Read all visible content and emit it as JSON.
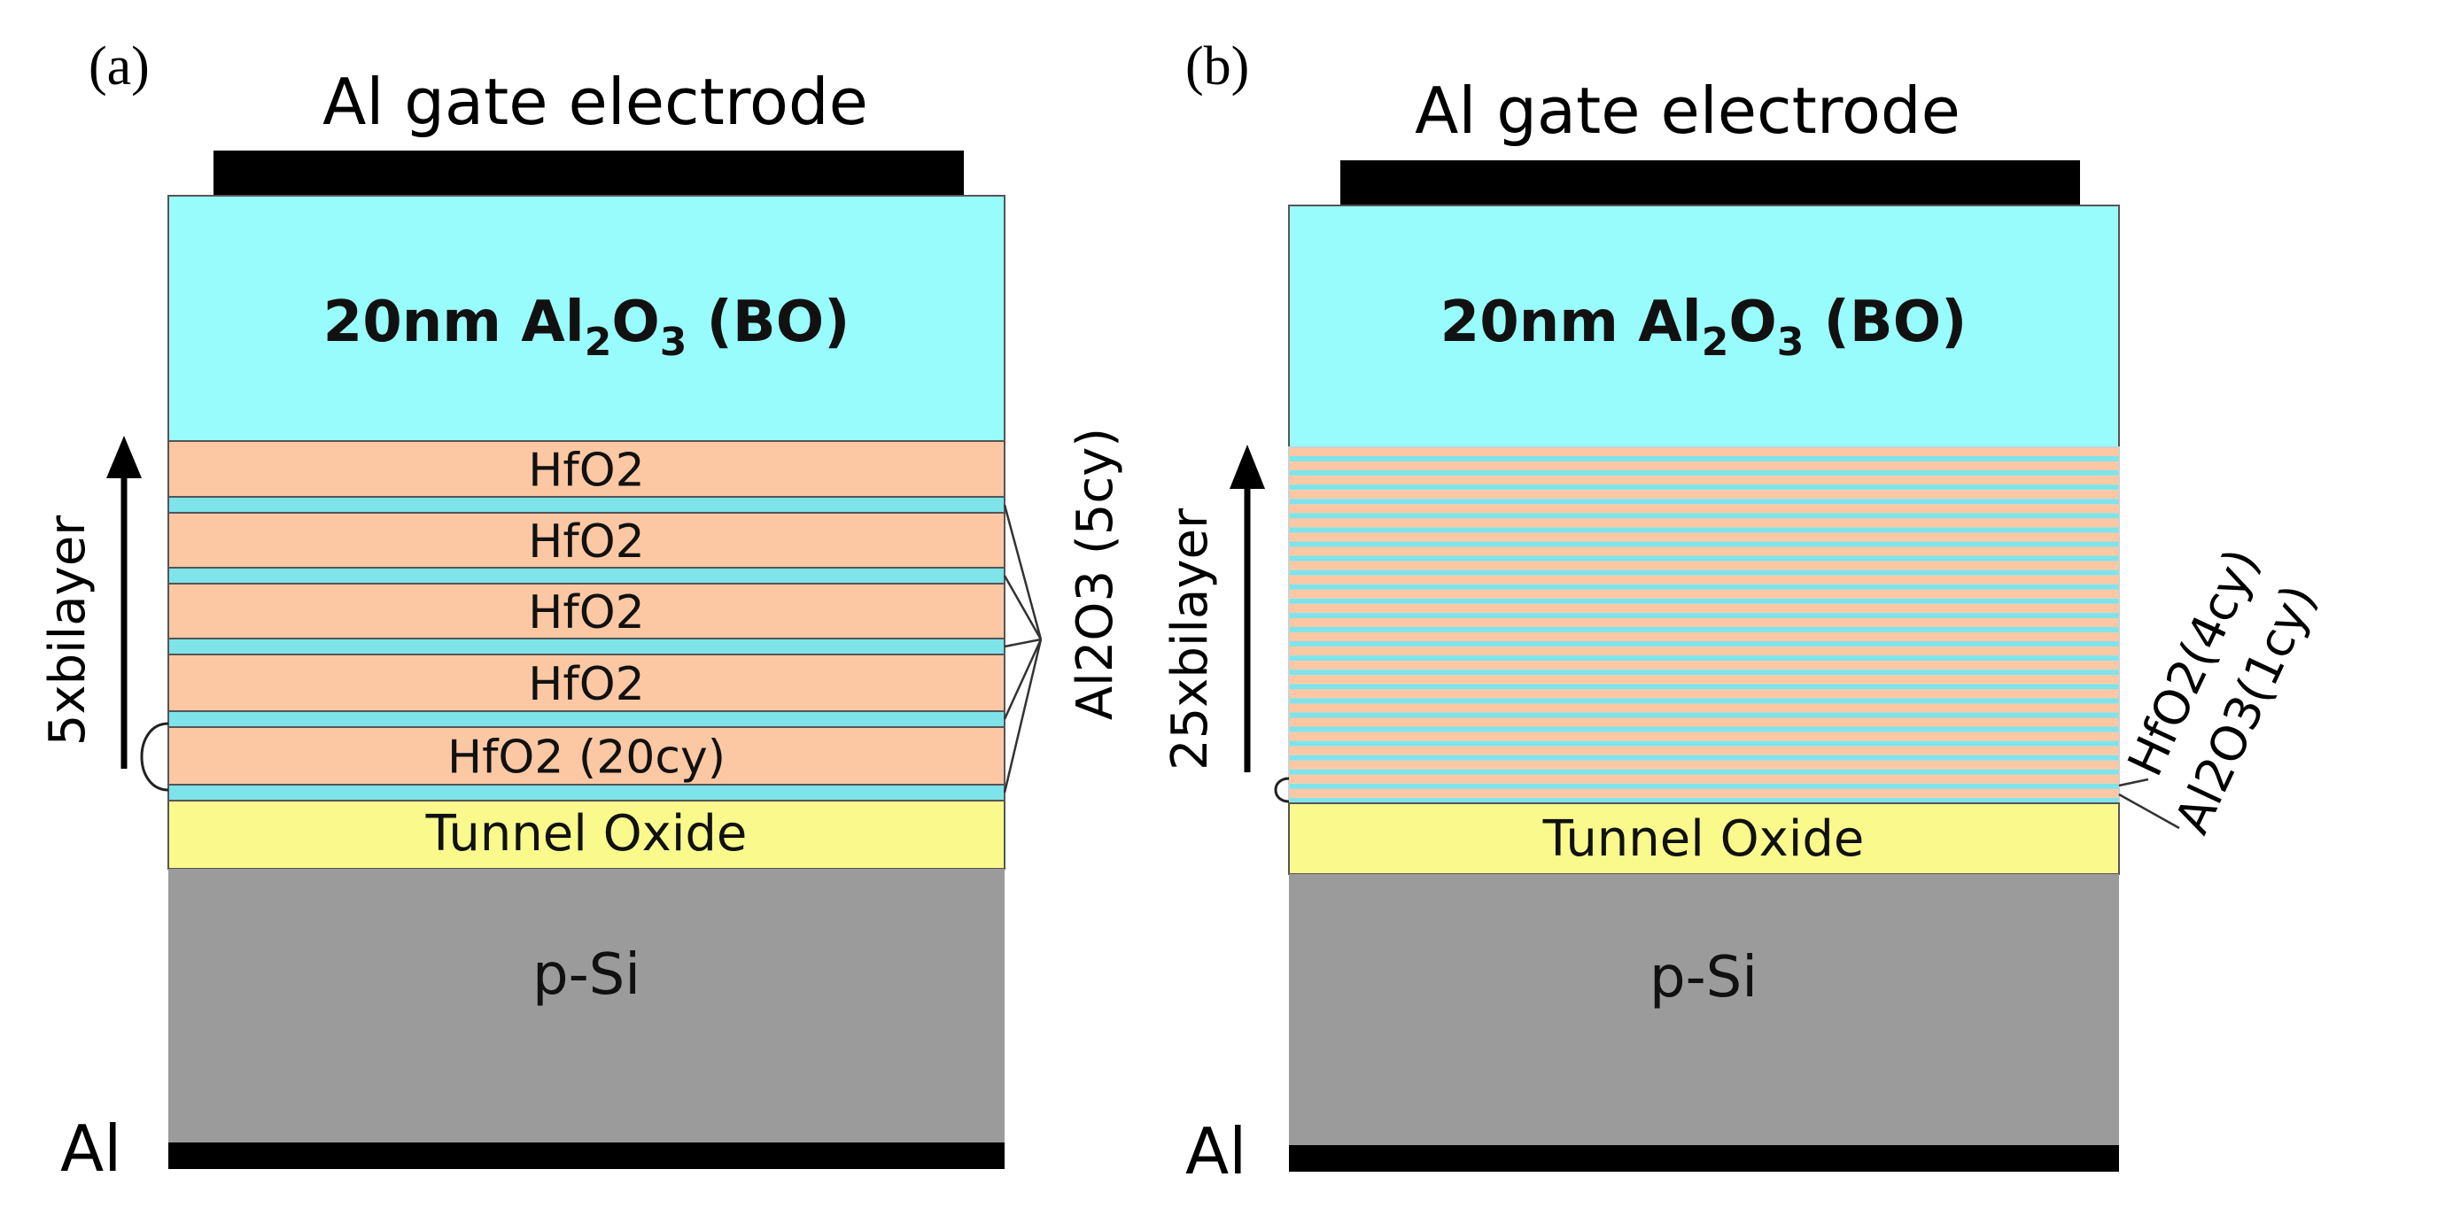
{
  "colors": {
    "electrode": "#000000",
    "blocking_oxide": "#99fcfc",
    "hfo2": "#fcc8a4",
    "al2o3_thin": "#7fe3ea",
    "tunnel_oxide": "#fafa8c",
    "substrate": "#9b9b9b",
    "outline": "#555555"
  },
  "panel_a": {
    "tag": "(a)",
    "gate_label": "Al gate electrode",
    "bo_prefix": "20nm Al",
    "bo_sub1": "2",
    "bo_mid": "O",
    "bo_sub2": "3",
    "bo_suffix": " (BO)",
    "hfo2_layers": [
      "HfO2",
      "HfO2",
      "HfO2",
      "HfO2",
      "HfO2 (20cy)"
    ],
    "stack_label": "5xbilayer",
    "al2o3_label": "Al2O3 (5cy)",
    "tunnel_label": "Tunnel Oxide",
    "substrate_label": "p-Si",
    "back_contact_label": "Al"
  },
  "panel_b": {
    "tag": "(b)",
    "gate_label": "Al gate electrode",
    "bo_prefix": "20nm Al",
    "bo_sub1": "2",
    "bo_mid": "O",
    "bo_sub2": "3",
    "bo_suffix": " (BO)",
    "stack_label": "25xbilayer",
    "bilayer_count": 25,
    "hfo2_label": "HfO2(4cy)",
    "al2o3_label": "Al2O3(1cy)",
    "tunnel_label": "Tunnel Oxide",
    "substrate_label": "p-Si",
    "back_contact_label": "Al"
  }
}
